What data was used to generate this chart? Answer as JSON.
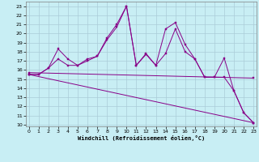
{
  "xlabel": "Windchill (Refroidissement éolien,°C)",
  "bg_color": "#c8eef4",
  "grid_color": "#aaccd8",
  "line_color": "#880088",
  "x_ticks": [
    0,
    1,
    2,
    3,
    4,
    5,
    6,
    7,
    8,
    9,
    10,
    11,
    12,
    13,
    14,
    15,
    16,
    17,
    18,
    19,
    20,
    21,
    22,
    23
  ],
  "y_ticks": [
    10,
    11,
    12,
    13,
    14,
    15,
    16,
    17,
    18,
    19,
    20,
    21,
    22,
    23
  ],
  "ylim": [
    9.8,
    23.5
  ],
  "xlim": [
    -0.3,
    23.3
  ],
  "series": [
    {
      "x": [
        0,
        1,
        2,
        3,
        4,
        5,
        6,
        7,
        8,
        9,
        10,
        11,
        12,
        13,
        14,
        15,
        16,
        17,
        18,
        19,
        20,
        21,
        22,
        23
      ],
      "y": [
        15.5,
        15.5,
        16.2,
        18.3,
        17.2,
        16.5,
        17.0,
        17.5,
        19.5,
        21.0,
        23.0,
        16.5,
        17.8,
        16.5,
        20.5,
        21.2,
        18.8,
        17.2,
        15.2,
        15.2,
        17.3,
        13.7,
        11.3,
        10.2
      ]
    },
    {
      "x": [
        0,
        1,
        2,
        3,
        4,
        5,
        6,
        7,
        8,
        9,
        10,
        11,
        12,
        13,
        14,
        15,
        16,
        17,
        18,
        19,
        20,
        21,
        22,
        23
      ],
      "y": [
        15.5,
        15.5,
        16.2,
        17.2,
        16.5,
        16.5,
        17.2,
        17.5,
        19.3,
        20.7,
        23.0,
        16.5,
        17.7,
        16.5,
        17.8,
        20.5,
        18.0,
        17.2,
        15.2,
        15.2,
        15.2,
        13.7,
        11.3,
        10.2
      ]
    },
    {
      "x": [
        0,
        23
      ],
      "y": [
        15.7,
        15.1
      ]
    },
    {
      "x": [
        0,
        23
      ],
      "y": [
        15.5,
        10.2
      ]
    }
  ]
}
